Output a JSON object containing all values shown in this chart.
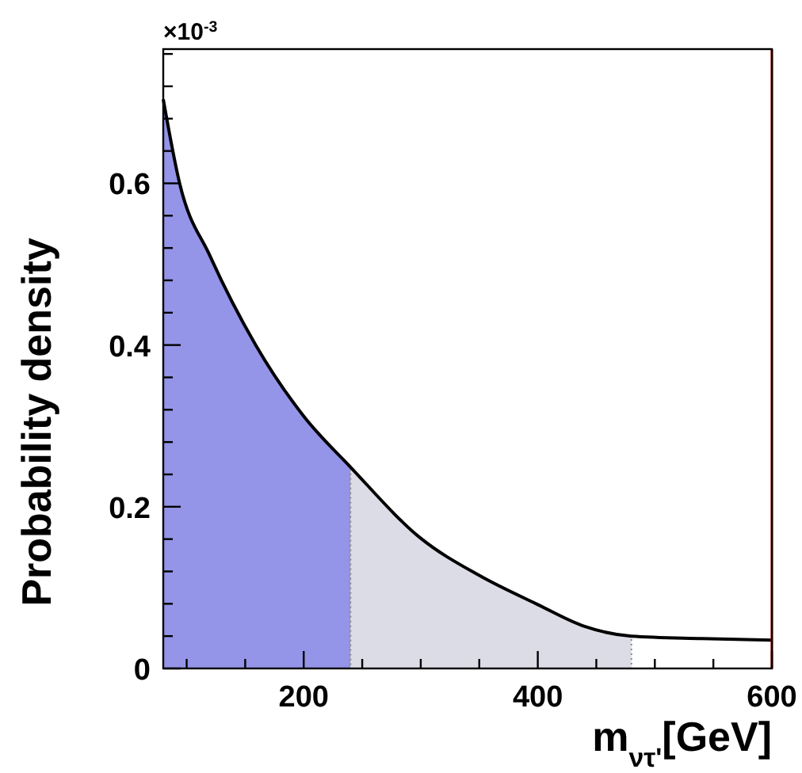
{
  "chart_data": {
    "type": "line",
    "xlabel": "m$_{ν}$$_{τ'}$[GeV]",
    "ylabel": "Probability density",
    "annotations": [
      "×10$^{-3}$"
    ],
    "xlim": [
      80,
      600
    ],
    "ylim": [
      0,
      0.766
    ],
    "xticks": [
      {
        "value": 100,
        "label": null
      },
      {
        "value": 150,
        "label": null
      },
      200,
      {
        "value": 250,
        "label": null
      },
      {
        "value": 300,
        "label": null
      },
      {
        "value": 350,
        "label": null
      },
      400,
      {
        "value": 450,
        "label": null
      },
      {
        "value": 500,
        "label": null
      },
      {
        "value": 550,
        "label": null
      },
      600
    ],
    "yticks": [
      0,
      {
        "value": 0.04,
        "label": null
      },
      {
        "value": 0.08,
        "label": null
      },
      {
        "value": 0.12,
        "label": null
      },
      {
        "value": 0.16,
        "label": null
      },
      0.2,
      {
        "value": 0.24,
        "label": null
      },
      {
        "value": 0.28,
        "label": null
      },
      {
        "value": 0.32,
        "label": null
      },
      {
        "value": 0.36,
        "label": null
      },
      0.4,
      {
        "value": 0.44,
        "label": null
      },
      {
        "value": 0.48,
        "label": null
      },
      {
        "value": 0.52,
        "label": null
      },
      {
        "value": 0.56,
        "label": null
      },
      0.6,
      {
        "value": 0.64,
        "label": null
      },
      {
        "value": 0.68,
        "label": null
      },
      {
        "value": 0.72,
        "label": null
      },
      {
        "value": 0.76,
        "label": null
      }
    ],
    "grid": false,
    "marker": "none",
    "line_style": "solid",
    "ref_lines": [
      {
        "axis": "x",
        "value": 600,
        "color": "#e00000"
      }
    ],
    "series": [
      {
        "type": "area",
        "color": "#9494e8",
        "x": [
          80,
          94,
          120,
          159,
          200,
          240
        ],
        "values": [
          0.704,
          0.6,
          0.51,
          0.4,
          0.312,
          0.249
        ]
      },
      {
        "type": "area",
        "color": "#dcdce6",
        "x": [
          240,
          300,
          350,
          400,
          440,
          480
        ],
        "values": [
          0.249,
          0.161,
          0.115,
          0.079,
          0.052,
          0.04
        ]
      },
      {
        "color": "#000000",
        "x": [
          80,
          94,
          120,
          159,
          200,
          240,
          300,
          350,
          400,
          440,
          480,
          540,
          600
        ],
        "values": [
          0.704,
          0.6,
          0.51,
          0.4,
          0.312,
          0.249,
          0.161,
          0.115,
          0.079,
          0.052,
          0.04,
          0.037,
          0.035
        ]
      }
    ]
  }
}
